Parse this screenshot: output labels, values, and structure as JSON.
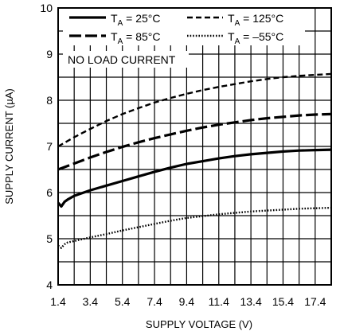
{
  "chart_data": {
    "type": "line",
    "xlabel": "SUPPLY VOLTAGE (V)",
    "ylabel": "SUPPLY CURRENT (µA)",
    "xlim": [
      1.4,
      18.4
    ],
    "ylim": [
      4,
      10
    ],
    "x_ticks": [
      1.4,
      3.4,
      5.4,
      7.4,
      9.4,
      11.4,
      13.4,
      15.4,
      17.4
    ],
    "x_tick_labels": [
      "1.4",
      "3.4",
      "5.4",
      "7.4",
      "9.4",
      "11.4",
      "13.4",
      "15.4",
      "17.4"
    ],
    "y_ticks": [
      4,
      5,
      6,
      7,
      8,
      9,
      10
    ],
    "y_tick_labels": [
      "4",
      "5",
      "6",
      "7",
      "8",
      "9",
      "10"
    ],
    "grid": true,
    "annotation": "NO LOAD CURRENT",
    "legend_placement": "top",
    "series": [
      {
        "name": "TA = 25°C",
        "name_main": "T",
        "name_sub": "A",
        "name_rest": " = 25°C",
        "style": "solid",
        "x": [
          1.4,
          1.6,
          1.8,
          2.0,
          2.4,
          3.4,
          4.4,
          5.4,
          6.4,
          7.4,
          8.4,
          9.4,
          10.4,
          11.4,
          12.4,
          13.4,
          14.4,
          15.4,
          16.4,
          17.4,
          18.4
        ],
        "y": [
          5.78,
          5.7,
          5.8,
          5.85,
          5.93,
          6.05,
          6.15,
          6.25,
          6.35,
          6.45,
          6.54,
          6.62,
          6.68,
          6.74,
          6.79,
          6.83,
          6.86,
          6.89,
          6.91,
          6.92,
          6.93
        ]
      },
      {
        "name": "TA = 85°C",
        "name_main": "T",
        "name_sub": "A",
        "name_rest": " = 85°C",
        "style": "longdash",
        "x": [
          1.4,
          2.4,
          3.4,
          4.4,
          5.4,
          6.4,
          7.4,
          8.4,
          9.4,
          10.4,
          11.4,
          12.4,
          13.4,
          14.4,
          15.4,
          16.4,
          17.4,
          18.4
        ],
        "y": [
          6.5,
          6.63,
          6.76,
          6.88,
          6.99,
          7.09,
          7.18,
          7.26,
          7.34,
          7.41,
          7.47,
          7.52,
          7.57,
          7.61,
          7.64,
          7.67,
          7.69,
          7.7
        ]
      },
      {
        "name": "TA = 125°C",
        "name_main": "T",
        "name_sub": "A",
        "name_rest": " = 125°C",
        "style": "dash",
        "x": [
          1.4,
          2.4,
          3.4,
          4.4,
          5.4,
          6.4,
          7.4,
          8.4,
          9.4,
          10.4,
          11.4,
          12.4,
          13.4,
          14.4,
          15.4,
          16.4,
          17.4,
          18.4
        ],
        "y": [
          7.0,
          7.2,
          7.38,
          7.55,
          7.7,
          7.83,
          7.95,
          8.05,
          8.14,
          8.22,
          8.29,
          8.35,
          8.41,
          8.46,
          8.5,
          8.53,
          8.55,
          8.57
        ]
      },
      {
        "name": "TA = –55°C",
        "name_main": "T",
        "name_sub": "A",
        "name_rest": " = –55°C",
        "style": "dotted",
        "x": [
          1.4,
          1.6,
          1.8,
          2.0,
          2.4,
          3.4,
          4.4,
          5.4,
          6.4,
          7.4,
          8.4,
          9.4,
          10.4,
          11.4,
          12.4,
          13.4,
          14.4,
          15.4,
          16.4,
          17.4,
          18.4
        ],
        "y": [
          4.85,
          4.8,
          4.88,
          4.92,
          4.95,
          5.03,
          5.1,
          5.18,
          5.25,
          5.32,
          5.39,
          5.45,
          5.49,
          5.53,
          5.56,
          5.59,
          5.61,
          5.63,
          5.65,
          5.66,
          5.67
        ]
      }
    ]
  }
}
